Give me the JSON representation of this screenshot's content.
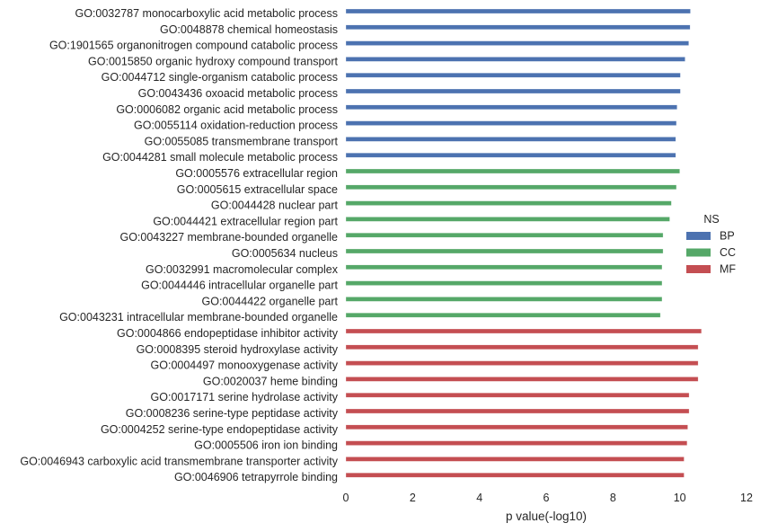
{
  "chart_data": {
    "type": "bar",
    "orientation": "horizontal",
    "xlabel": "p value(-log10)",
    "ylabel": "",
    "xlim": [
      0,
      12
    ],
    "xticks": [
      "0",
      "2",
      "4",
      "6",
      "8",
      "10",
      "12"
    ],
    "grid": false,
    "legend": {
      "title": "NS",
      "placement": "right",
      "entries": [
        {
          "name": "BP",
          "color": "#4c72b0"
        },
        {
          "name": "CC",
          "color": "#55a868"
        },
        {
          "name": "MF",
          "color": "#c44e52"
        }
      ]
    },
    "categories": [
      "GO:0032787 monocarboxylic acid metabolic process",
      "GO:0048878 chemical homeostasis",
      "GO:1901565 organonitrogen compound catabolic process",
      "GO:0015850 organic hydroxy compound transport",
      "GO:0044712 single-organism catabolic process",
      "GO:0043436 oxoacid metabolic process",
      "GO:0006082 organic acid metabolic process",
      "GO:0055114 oxidation-reduction process",
      "GO:0055085 transmembrane transport",
      "GO:0044281 small molecule metabolic process",
      "GO:0005576 extracellular region",
      "GO:0005615 extracellular space",
      "GO:0044428 nuclear part",
      "GO:0044421 extracellular region part",
      "GO:0043227 membrane-bounded organelle",
      "GO:0005634 nucleus",
      "GO:0032991 macromolecular complex",
      "GO:0044446 intracellular organelle part",
      "GO:0044422 organelle part",
      "GO:0043231 intracellular membrane-bounded organelle",
      "GO:0004866 endopeptidase inhibitor activity",
      "GO:0008395 steroid hydroxylase activity",
      "GO:0004497 monooxygenase activity",
      "GO:0020037 heme binding",
      "GO:0017171 serine hydrolase activity",
      "GO:0008236 serine-type peptidase activity",
      "GO:0004252 serine-type endopeptidase activity",
      "GO:0005506 iron ion binding",
      "GO:0046943 carboxylic acid transmembrane transporter activity",
      "GO:0046906 tetrapyrrole binding"
    ],
    "series": [
      {
        "name": "BP",
        "color": "#4c72b0",
        "values": [
          10.32,
          10.31,
          10.27,
          10.16,
          10.02,
          10.02,
          9.92,
          9.9,
          9.88,
          9.88,
          null,
          null,
          null,
          null,
          null,
          null,
          null,
          null,
          null,
          null,
          null,
          null,
          null,
          null,
          null,
          null,
          null,
          null,
          null,
          null
        ]
      },
      {
        "name": "CC",
        "color": "#55a868",
        "values": [
          null,
          null,
          null,
          null,
          null,
          null,
          null,
          null,
          null,
          null,
          10.0,
          9.9,
          9.75,
          9.7,
          9.5,
          9.5,
          9.47,
          9.47,
          9.47,
          9.42,
          null,
          null,
          null,
          null,
          null,
          null,
          null,
          null,
          null,
          null
        ]
      },
      {
        "name": "MF",
        "color": "#c44e52",
        "values": [
          null,
          null,
          null,
          null,
          null,
          null,
          null,
          null,
          null,
          null,
          null,
          null,
          null,
          null,
          null,
          null,
          null,
          null,
          null,
          null,
          10.65,
          10.55,
          10.55,
          10.55,
          10.28,
          10.28,
          10.24,
          10.22,
          10.13,
          10.13
        ]
      }
    ]
  }
}
